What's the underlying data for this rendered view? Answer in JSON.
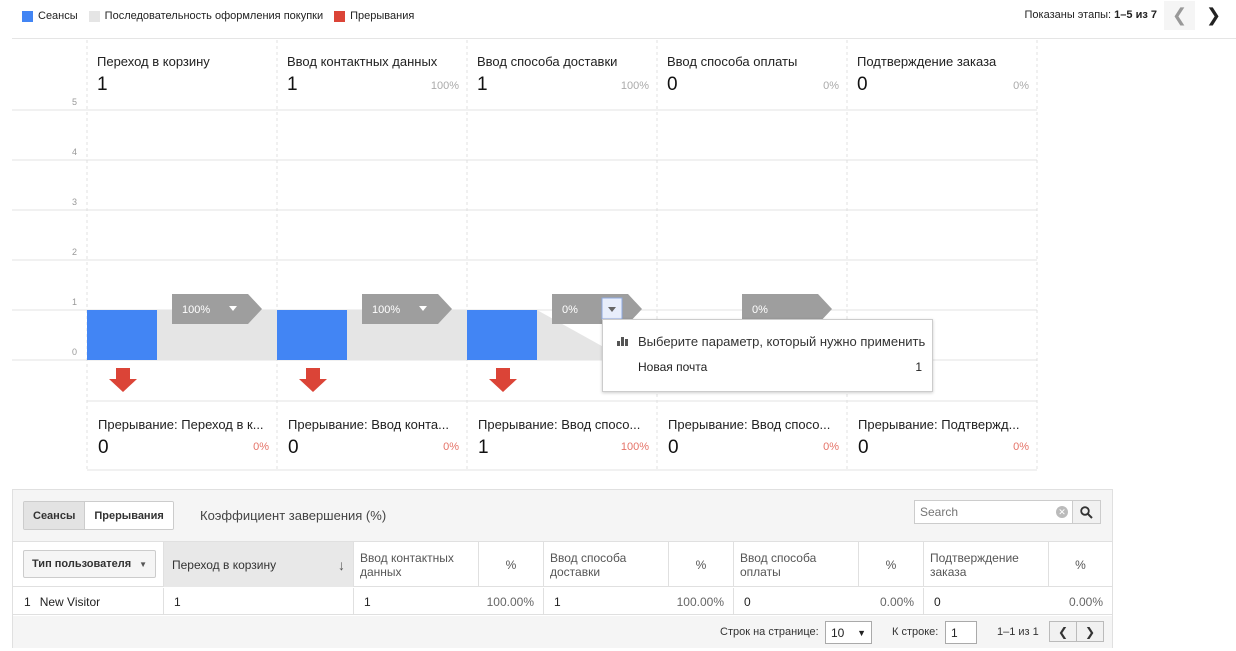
{
  "legend": [
    {
      "label": "Сеансы",
      "color": "#4285f4"
    },
    {
      "label": "Последовательность оформления покупки",
      "color": "#e5e5e5"
    },
    {
      "label": "Прерывания",
      "color": "#db4437"
    }
  ],
  "stages_info": {
    "prefix": "Показаны этапы: ",
    "range": "1–5 из 7"
  },
  "nav": {
    "prev_icon": "chevron-left-icon",
    "next_icon": "chevron-right-icon"
  },
  "chart_data": {
    "type": "bar",
    "title": "",
    "ylim": [
      0,
      5
    ],
    "yticks": [
      "0",
      "1",
      "2",
      "3",
      "4",
      "5"
    ],
    "grid": true,
    "legend_position": "top-left",
    "series": [
      {
        "name": "Сеансы",
        "color": "#4285f4",
        "values": [
          1,
          1,
          1,
          0,
          0
        ]
      },
      {
        "name": "Последовательность оформления покупки",
        "color": "#e5e5e5",
        "values": [
          1,
          1,
          0,
          0
        ]
      },
      {
        "name": "Прерывания",
        "color": "#db4437",
        "values": [
          0,
          0,
          1,
          0,
          0
        ]
      }
    ],
    "stages": [
      {
        "name": "Переход в корзину",
        "value": "1",
        "pct": ""
      },
      {
        "name": "Ввод контактных данных",
        "value": "1",
        "pct": "100%"
      },
      {
        "name": "Ввод способа доставки",
        "value": "1",
        "pct": "100%"
      },
      {
        "name": "Ввод способа оплаты",
        "value": "0",
        "pct": "0%"
      },
      {
        "name": "Подтверждение заказа",
        "value": "0",
        "pct": "0%"
      }
    ],
    "transitions": [
      "100%",
      "100%",
      "0%",
      "0%"
    ],
    "abandonments": [
      {
        "name": "Прерывание: Переход в к...",
        "value": "0",
        "pct": "0%",
        "arrow": true
      },
      {
        "name": "Прерывание: Ввод конта...",
        "value": "0",
        "pct": "0%",
        "arrow": true
      },
      {
        "name": "Прерывание: Ввод спосо...",
        "value": "1",
        "pct": "100%",
        "arrow": true
      },
      {
        "name": "Прерывание: Ввод спосо...",
        "value": "0",
        "pct": "0%",
        "arrow": false
      },
      {
        "name": "Прерывание: Подтвержд...",
        "value": "0",
        "pct": "0%",
        "arrow": false
      }
    ]
  },
  "tooltip": {
    "heading": "Выберите параметр, который нужно применить",
    "row_label": "Новая почта",
    "row_value": "1"
  },
  "table": {
    "tabs": [
      "Сеансы",
      "Прерывания"
    ],
    "metric_label": "Коэффициент завершения (%)",
    "search_placeholder": "Search",
    "dimension_button": "Тип пользователя",
    "columns": [
      {
        "label": "Переход в корзину"
      },
      {
        "label": "Ввод контактных данных"
      },
      {
        "label": "%"
      },
      {
        "label": "Ввод способа доставки"
      },
      {
        "label": "%"
      },
      {
        "label": "Ввод способа оплаты"
      },
      {
        "label": "%"
      },
      {
        "label": "Подтверждение заказа"
      },
      {
        "label": "%"
      }
    ],
    "rows": [
      {
        "index": "1",
        "dimension": "New Visitor",
        "cells": [
          "1",
          "1",
          "100.00%",
          "1",
          "100.00%",
          "0",
          "0.00%",
          "0",
          "0.00%"
        ]
      }
    ],
    "pager": {
      "rows_label": "Строк на странице:",
      "rows_value": "10",
      "goto_label": "К строке:",
      "goto_value": "1",
      "range": "1–1 из 1"
    }
  }
}
